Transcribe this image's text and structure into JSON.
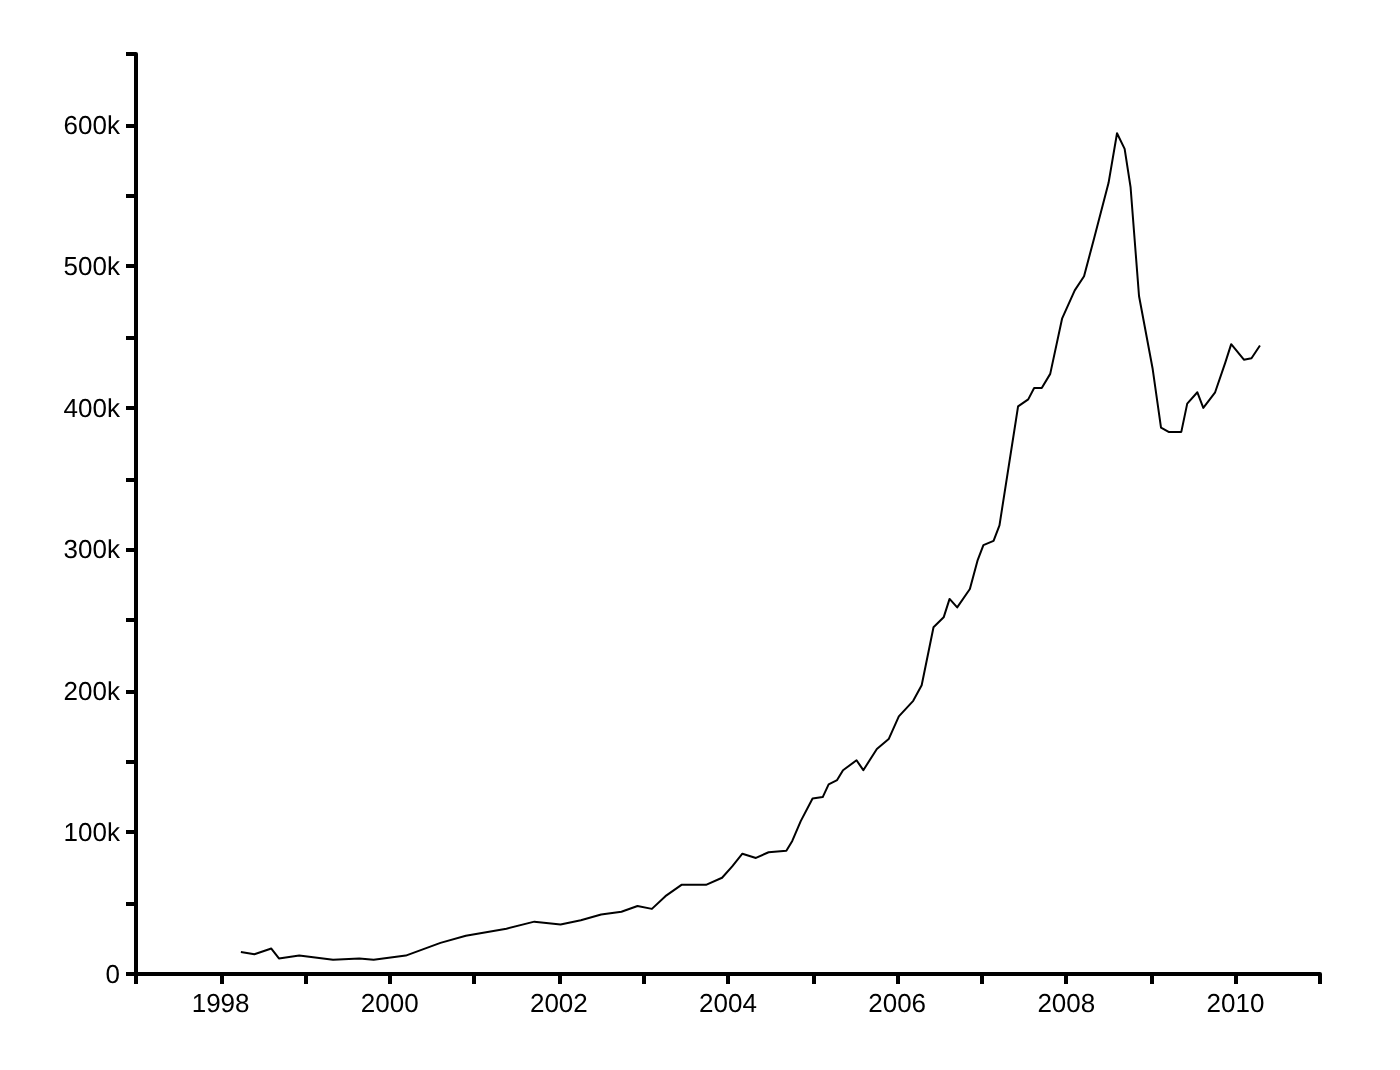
{
  "chart_data": {
    "type": "line",
    "color": "#000000",
    "x": [
      1998.24,
      1998.4,
      1998.6,
      1998.69,
      1998.93,
      1999.33,
      1999.64,
      1999.81,
      2000.19,
      2000.6,
      2000.9,
      2001.38,
      2001.71,
      2002.02,
      2002.26,
      2002.5,
      2002.74,
      2002.93,
      2003.1,
      2003.26,
      2003.45,
      2003.74,
      2003.93,
      2004.05,
      2004.17,
      2004.33,
      2004.48,
      2004.69,
      2004.76,
      2004.86,
      2005.0,
      2005.12,
      2005.19,
      2005.29,
      2005.36,
      2005.52,
      2005.6,
      2005.76,
      2005.9,
      2006.02,
      2006.19,
      2006.29,
      2006.43,
      2006.55,
      2006.62,
      2006.71,
      2006.86,
      2006.95,
      2007.02,
      2007.14,
      2007.21,
      2007.43,
      2007.55,
      2007.62,
      2007.71,
      2007.81,
      2007.95,
      2008.1,
      2008.21,
      2008.33,
      2008.5,
      2008.6,
      2008.69,
      2008.76,
      2008.86,
      2009.02,
      2009.12,
      2009.21,
      2009.36,
      2009.43,
      2009.55,
      2009.62,
      2009.76,
      2009.88,
      2009.95,
      2010.1,
      2010.19,
      2010.29
    ],
    "values": [
      15500,
      14000,
      18000,
      11000,
      13000,
      10000,
      11000,
      10000,
      13000,
      22000,
      27000,
      32000,
      37000,
      35000,
      38000,
      42000,
      44000,
      48000,
      46000,
      55000,
      63000,
      63000,
      68000,
      76000,
      85000,
      82000,
      86000,
      87000,
      94000,
      108000,
      124000,
      125000,
      134000,
      137000,
      144000,
      151000,
      144000,
      159000,
      166000,
      182000,
      193000,
      204000,
      245000,
      252000,
      265000,
      259000,
      272000,
      292000,
      303000,
      306000,
      317000,
      401000,
      406000,
      414000,
      414000,
      424000,
      463000,
      483000,
      493000,
      520000,
      559000,
      594000,
      583000,
      556000,
      479000,
      428000,
      386000,
      383000,
      383000,
      403000,
      411000,
      400000,
      411000,
      432000,
      445000,
      434000,
      435000,
      444000
    ],
    "xlim": [
      1997,
      2011
    ],
    "xticks": [
      {
        "value": 1997,
        "label": null
      },
      1998,
      {
        "value": 1999,
        "label": null
      },
      2000,
      {
        "value": 2001,
        "label": null
      },
      2002,
      {
        "value": 2003,
        "label": null
      },
      2004,
      {
        "value": 2005,
        "label": null
      },
      2006,
      {
        "value": 2007,
        "label": null
      },
      2008,
      {
        "value": 2009,
        "label": null
      },
      2010,
      {
        "value": 2011,
        "label": null
      }
    ],
    "ylim": [
      0,
      650000
    ],
    "yticks": [
      {
        "value": 0,
        "label": "0"
      },
      {
        "value": 50000,
        "label": null
      },
      {
        "value": 100000,
        "label": "100k"
      },
      {
        "value": 150000,
        "label": null
      },
      {
        "value": 200000,
        "label": "200k"
      },
      {
        "value": 250000,
        "label": null
      },
      {
        "value": 300000,
        "label": "300k"
      },
      {
        "value": 350000,
        "label": null
      },
      {
        "value": 400000,
        "label": "400k"
      },
      {
        "value": 450000,
        "label": null
      },
      {
        "value": 500000,
        "label": "500k"
      },
      {
        "value": 550000,
        "label": null
      },
      {
        "value": 600000,
        "label": "600k"
      },
      {
        "value": 650000,
        "label": null
      }
    ]
  }
}
